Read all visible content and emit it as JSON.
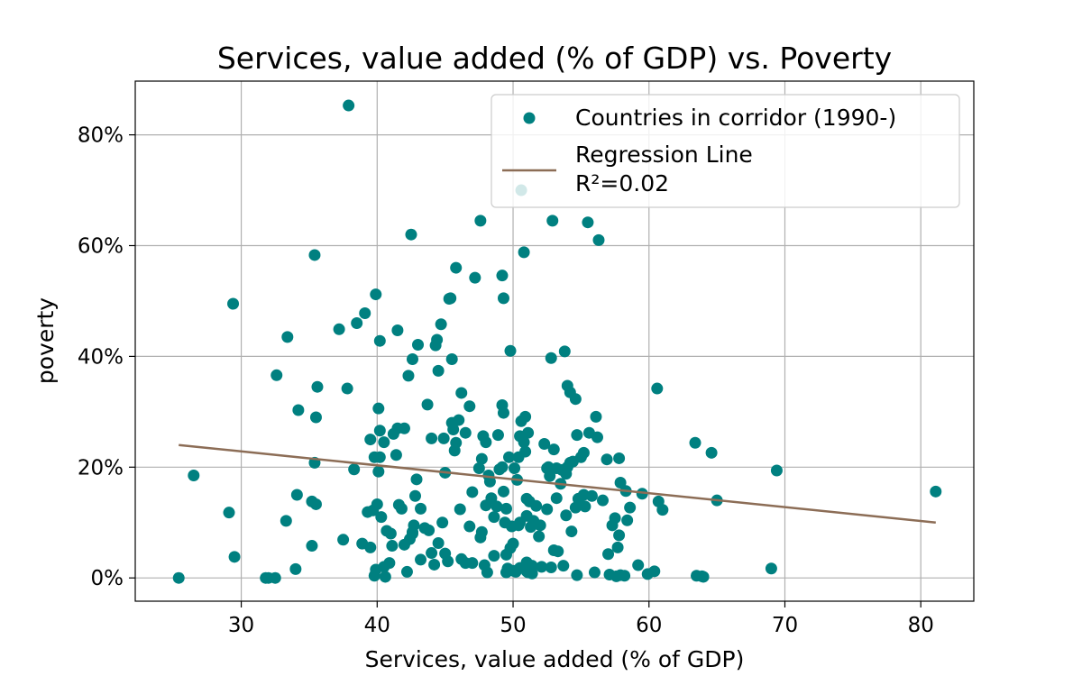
{
  "chart_data": {
    "type": "scatter",
    "title": "Services, value added (% of GDP) vs. Poverty",
    "xlabel": "Services, value added (% of GDP)",
    "ylabel": "poverty",
    "xlim": [
      22.2,
      83.9
    ],
    "ylim": [
      -0.042,
      0.897
    ],
    "xticks": [
      30,
      40,
      50,
      60,
      70,
      80
    ],
    "xtick_labels": [
      "30",
      "40",
      "50",
      "60",
      "70",
      "80"
    ],
    "yticks": [
      0,
      0.2,
      0.4,
      0.6,
      0.8
    ],
    "ytick_labels": [
      "0%",
      "20%",
      "40%",
      "60%",
      "80%"
    ],
    "grid": true,
    "legend_position": "top-right",
    "colors": {
      "scatter": "#008080",
      "regression": "#8c6d56"
    },
    "series": [
      {
        "name": "Countries in corridor (1990-)",
        "kind": "scatter",
        "points": [
          [
            25.4,
            0.0
          ],
          [
            26.5,
            0.185
          ],
          [
            29.1,
            0.118
          ],
          [
            29.4,
            0.495
          ],
          [
            29.5,
            0.038
          ],
          [
            31.8,
            0.0
          ],
          [
            32.0,
            0.0
          ],
          [
            32.5,
            0.0
          ],
          [
            32.6,
            0.366
          ],
          [
            33.4,
            0.435
          ],
          [
            33.3,
            0.103
          ],
          [
            34.0,
            0.016
          ],
          [
            34.1,
            0.15
          ],
          [
            34.2,
            0.303
          ],
          [
            35.2,
            0.138
          ],
          [
            35.2,
            0.058
          ],
          [
            35.4,
            0.583
          ],
          [
            35.4,
            0.208
          ],
          [
            35.5,
            0.29
          ],
          [
            35.6,
            0.345
          ],
          [
            35.5,
            0.133
          ],
          [
            37.2,
            0.449
          ],
          [
            37.5,
            0.069
          ],
          [
            37.8,
            0.342
          ],
          [
            37.9,
            0.853
          ],
          [
            38.3,
            0.196
          ],
          [
            38.5,
            0.46
          ],
          [
            38.9,
            0.062
          ],
          [
            39.1,
            0.478
          ],
          [
            39.3,
            0.119
          ],
          [
            39.5,
            0.25
          ],
          [
            39.5,
            0.055
          ],
          [
            39.7,
            0.122
          ],
          [
            39.8,
            0.218
          ],
          [
            39.9,
            0.015
          ],
          [
            39.8,
            0.004
          ],
          [
            39.9,
            0.512
          ],
          [
            40.0,
            0.133
          ],
          [
            40.1,
            0.306
          ],
          [
            40.1,
            0.192
          ],
          [
            40.2,
            0.428
          ],
          [
            40.2,
            0.218
          ],
          [
            40.2,
            0.266
          ],
          [
            40.3,
            0.11
          ],
          [
            40.5,
            0.245
          ],
          [
            40.5,
            0.02
          ],
          [
            40.6,
            0.002
          ],
          [
            40.7,
            0.085
          ],
          [
            40.9,
            0.027
          ],
          [
            41.0,
            0.08
          ],
          [
            41.1,
            0.058
          ],
          [
            41.2,
            0.26
          ],
          [
            41.5,
            0.27
          ],
          [
            41.4,
            0.222
          ],
          [
            41.5,
            0.447
          ],
          [
            41.6,
            0.132
          ],
          [
            41.8,
            0.125
          ],
          [
            42.0,
            0.27
          ],
          [
            42.0,
            0.06
          ],
          [
            42.2,
            0.011
          ],
          [
            42.3,
            0.365
          ],
          [
            42.4,
            0.07
          ],
          [
            42.5,
            0.62
          ],
          [
            42.6,
            0.083
          ],
          [
            42.6,
            0.08
          ],
          [
            42.6,
            0.395
          ],
          [
            42.7,
            0.095
          ],
          [
            42.8,
            0.148
          ],
          [
            42.9,
            0.178
          ],
          [
            43.0,
            0.421
          ],
          [
            43.2,
            0.125
          ],
          [
            43.2,
            0.033
          ],
          [
            43.5,
            0.09
          ],
          [
            43.7,
            0.313
          ],
          [
            43.8,
            0.086
          ],
          [
            44.0,
            0.252
          ],
          [
            44.0,
            0.045
          ],
          [
            44.2,
            0.024
          ],
          [
            44.3,
            0.42
          ],
          [
            44.4,
            0.43
          ],
          [
            44.5,
            0.374
          ],
          [
            44.5,
            0.063
          ],
          [
            44.7,
            0.458
          ],
          [
            44.8,
            0.1
          ],
          [
            44.9,
            0.252
          ],
          [
            45.0,
            0.19
          ],
          [
            45.0,
            0.044
          ],
          [
            45.2,
            0.03
          ],
          [
            45.3,
            0.504
          ],
          [
            45.4,
            0.505
          ],
          [
            45.5,
            0.395
          ],
          [
            45.5,
            0.28
          ],
          [
            45.6,
            0.268
          ],
          [
            45.7,
            0.23
          ],
          [
            45.8,
            0.56
          ],
          [
            45.8,
            0.244
          ],
          [
            46.0,
            0.285
          ],
          [
            46.1,
            0.124
          ],
          [
            46.2,
            0.034
          ],
          [
            46.2,
            0.334
          ],
          [
            46.5,
            0.262
          ],
          [
            46.5,
            0.027
          ],
          [
            46.8,
            0.31
          ],
          [
            46.8,
            0.093
          ],
          [
            47.0,
            0.155
          ],
          [
            47.0,
            0.027
          ],
          [
            47.2,
            0.542
          ],
          [
            47.5,
            0.198
          ],
          [
            47.6,
            0.645
          ],
          [
            47.6,
            0.073
          ],
          [
            47.7,
            0.083
          ],
          [
            47.7,
            0.215
          ],
          [
            47.8,
            0.256
          ],
          [
            47.9,
            0.023
          ],
          [
            48.0,
            0.245
          ],
          [
            48.0,
            0.131
          ],
          [
            48.1,
            0.01
          ],
          [
            48.2,
            0.185
          ],
          [
            48.3,
            0.174
          ],
          [
            48.4,
            0.144
          ],
          [
            48.6,
            0.11
          ],
          [
            48.6,
            0.04
          ],
          [
            48.8,
            0.129
          ],
          [
            48.9,
            0.258
          ],
          [
            49.0,
            0.196
          ],
          [
            49.2,
            0.2
          ],
          [
            49.2,
            0.312
          ],
          [
            49.2,
            0.546
          ],
          [
            49.3,
            0.505
          ],
          [
            49.3,
            0.298
          ],
          [
            49.3,
            0.156
          ],
          [
            49.4,
            0.1
          ],
          [
            49.5,
            0.125
          ],
          [
            49.5,
            0.01
          ],
          [
            49.5,
            0.042
          ],
          [
            49.6,
            0.017
          ],
          [
            49.7,
            0.218
          ],
          [
            49.8,
            0.054
          ],
          [
            49.8,
            0.41
          ],
          [
            49.9,
            0.093
          ],
          [
            50.0,
            0.062
          ],
          [
            50.0,
            0.013
          ],
          [
            50.1,
            0.198
          ],
          [
            50.2,
            0.011
          ],
          [
            50.3,
            0.177
          ],
          [
            50.4,
            0.218
          ],
          [
            50.4,
            0.095
          ],
          [
            50.5,
            0.1
          ],
          [
            50.5,
            0.018
          ],
          [
            50.5,
            0.256
          ],
          [
            50.6,
            0.283
          ],
          [
            50.6,
            0.7
          ],
          [
            50.8,
            0.588
          ],
          [
            50.8,
            0.245
          ],
          [
            50.9,
            0.291
          ],
          [
            50.9,
            0.228
          ],
          [
            51.0,
            0.143
          ],
          [
            51.0,
            0.012
          ],
          [
            51.0,
            0.112
          ],
          [
            51.0,
            0.028
          ],
          [
            51.1,
            0.01
          ],
          [
            51.1,
            0.262
          ],
          [
            51.2,
            0.138
          ],
          [
            51.3,
            0.092
          ],
          [
            51.4,
            0.022
          ],
          [
            51.4,
            0.008
          ],
          [
            51.5,
            0.103
          ],
          [
            51.7,
            0.13
          ],
          [
            51.9,
            0.075
          ],
          [
            52.0,
            0.095
          ],
          [
            52.1,
            0.02
          ],
          [
            52.3,
            0.242
          ],
          [
            52.5,
            0.198
          ],
          [
            52.5,
            0.124
          ],
          [
            52.6,
            0.2
          ],
          [
            52.7,
            0.184
          ],
          [
            52.8,
            0.019
          ],
          [
            52.8,
            0.397
          ],
          [
            52.9,
            0.645
          ],
          [
            53.0,
            0.232
          ],
          [
            53.0,
            0.05
          ],
          [
            53.2,
            0.198
          ],
          [
            53.2,
            0.144
          ],
          [
            53.3,
            0.048
          ],
          [
            53.5,
            0.17
          ],
          [
            53.6,
            0.195
          ],
          [
            53.7,
            0.022
          ],
          [
            53.8,
            0.409
          ],
          [
            53.9,
            0.188
          ],
          [
            53.9,
            0.113
          ],
          [
            54.0,
            0.2
          ],
          [
            54.0,
            0.347
          ],
          [
            54.2,
            0.208
          ],
          [
            54.2,
            0.335
          ],
          [
            54.3,
            0.084
          ],
          [
            54.4,
            0.21
          ],
          [
            54.6,
            0.323
          ],
          [
            54.6,
            0.127
          ],
          [
            54.7,
            0.258
          ],
          [
            54.7,
            0.005
          ],
          [
            54.8,
            0.143
          ],
          [
            55.0,
            0.218
          ],
          [
            55.2,
            0.15
          ],
          [
            55.2,
            0.226
          ],
          [
            55.3,
            0.129
          ],
          [
            55.5,
            0.642
          ],
          [
            55.6,
            0.262
          ],
          [
            55.8,
            0.148
          ],
          [
            56.0,
            0.01
          ],
          [
            56.1,
            0.291
          ],
          [
            56.2,
            0.254
          ],
          [
            56.3,
            0.61
          ],
          [
            56.6,
            0.14
          ],
          [
            56.9,
            0.214
          ],
          [
            57.0,
            0.043
          ],
          [
            57.1,
            0.006
          ],
          [
            57.3,
            0.095
          ],
          [
            57.5,
            0.108
          ],
          [
            57.6,
            0.003
          ],
          [
            57.7,
            0.055
          ],
          [
            57.8,
            0.077
          ],
          [
            57.9,
            0.005
          ],
          [
            57.9,
            0.172
          ],
          [
            57.8,
            0.216
          ],
          [
            58.2,
            0.004
          ],
          [
            58.3,
            0.157
          ],
          [
            58.4,
            0.104
          ],
          [
            58.6,
            0.127
          ],
          [
            59.2,
            0.023
          ],
          [
            59.5,
            0.152
          ],
          [
            59.9,
            0.007
          ],
          [
            60.4,
            0.012
          ],
          [
            60.6,
            0.342
          ],
          [
            60.7,
            0.138
          ],
          [
            61.0,
            0.123
          ],
          [
            63.4,
            0.244
          ],
          [
            63.5,
            0.004
          ],
          [
            63.9,
            0.003
          ],
          [
            64.0,
            0.002
          ],
          [
            64.6,
            0.226
          ],
          [
            65.0,
            0.14
          ],
          [
            69.0,
            0.017
          ],
          [
            69.4,
            0.194
          ],
          [
            81.1,
            0.156
          ]
        ]
      },
      {
        "name": "Regression Line",
        "label_extra": "R²=0.02",
        "kind": "line",
        "points": [
          [
            25.4,
            0.24
          ],
          [
            81.1,
            0.1
          ]
        ]
      }
    ]
  }
}
